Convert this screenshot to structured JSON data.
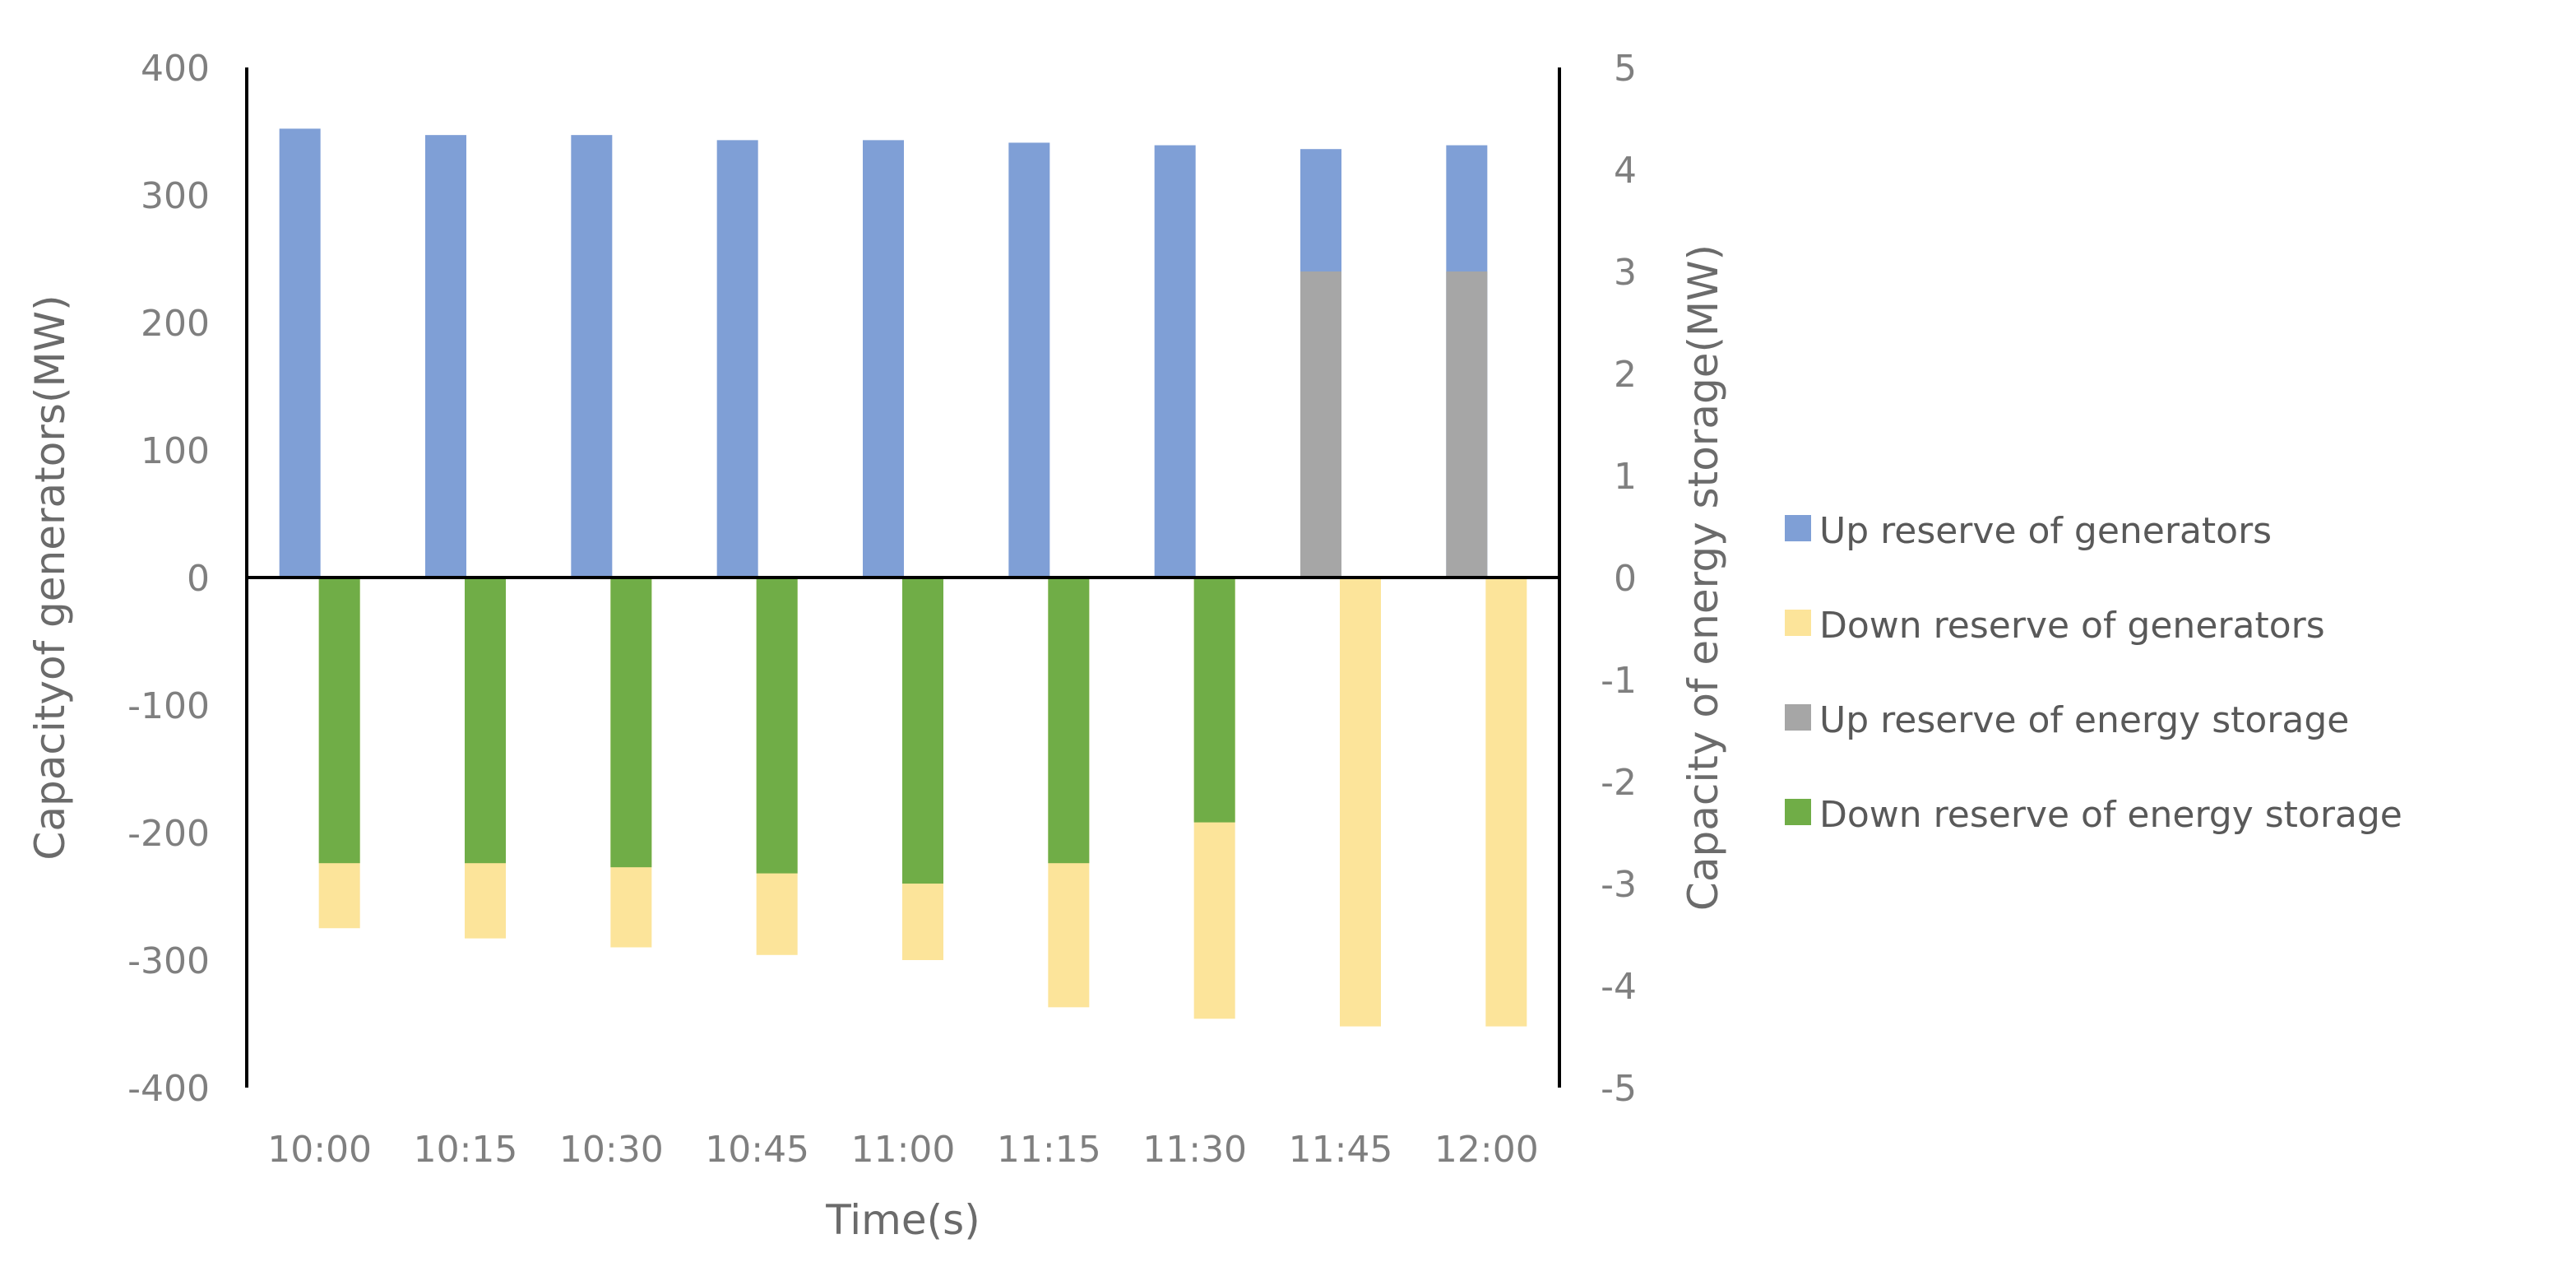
{
  "chart_data": {
    "type": "bar",
    "stacked": true,
    "dual_axis": true,
    "xlabel": "Time(s)",
    "ylabel_left": "Capacityof generators(MW)",
    "ylabel_right": "Capacity of energy storage(MW)",
    "ylim_left": [
      -400,
      400
    ],
    "ylim_right": [
      -5,
      5
    ],
    "yticks_left": [
      "400",
      "300",
      "200",
      "100",
      "0",
      "-100",
      "-200",
      "-300",
      "-400"
    ],
    "yticks_right": [
      "5",
      "4",
      "3",
      "2",
      "1",
      "0",
      "-1",
      "-2",
      "-3",
      "-4",
      "-5"
    ],
    "categories": [
      "10:00",
      "10:15",
      "10:30",
      "10:45",
      "11:00",
      "11:15",
      "11:30",
      "11:45",
      "12:00"
    ],
    "grid": false,
    "legend_position": "right",
    "series": [
      {
        "name": "Up reserve of generators",
        "axis": "left",
        "color": "#7f9fd6",
        "values": [
          352,
          347,
          347,
          343,
          343,
          341,
          339,
          336,
          339
        ]
      },
      {
        "name": "Down reserve of generators",
        "axis": "left",
        "color": "#fce49a",
        "values": [
          -275,
          -283,
          -290,
          -296,
          -300,
          -337,
          -346,
          -352,
          -352
        ]
      },
      {
        "name": "Up reserve of energy storage",
        "axis": "right",
        "color": "#a6a6a6",
        "values": [
          0,
          0,
          0,
          0,
          0,
          0,
          0,
          3,
          3
        ]
      },
      {
        "name": "Down reserve of energy storage",
        "axis": "right",
        "color": "#70ad47",
        "values": [
          -2.8,
          -2.8,
          -2.84,
          -2.9,
          -3.0,
          -2.8,
          -2.4,
          0,
          0
        ]
      }
    ]
  }
}
